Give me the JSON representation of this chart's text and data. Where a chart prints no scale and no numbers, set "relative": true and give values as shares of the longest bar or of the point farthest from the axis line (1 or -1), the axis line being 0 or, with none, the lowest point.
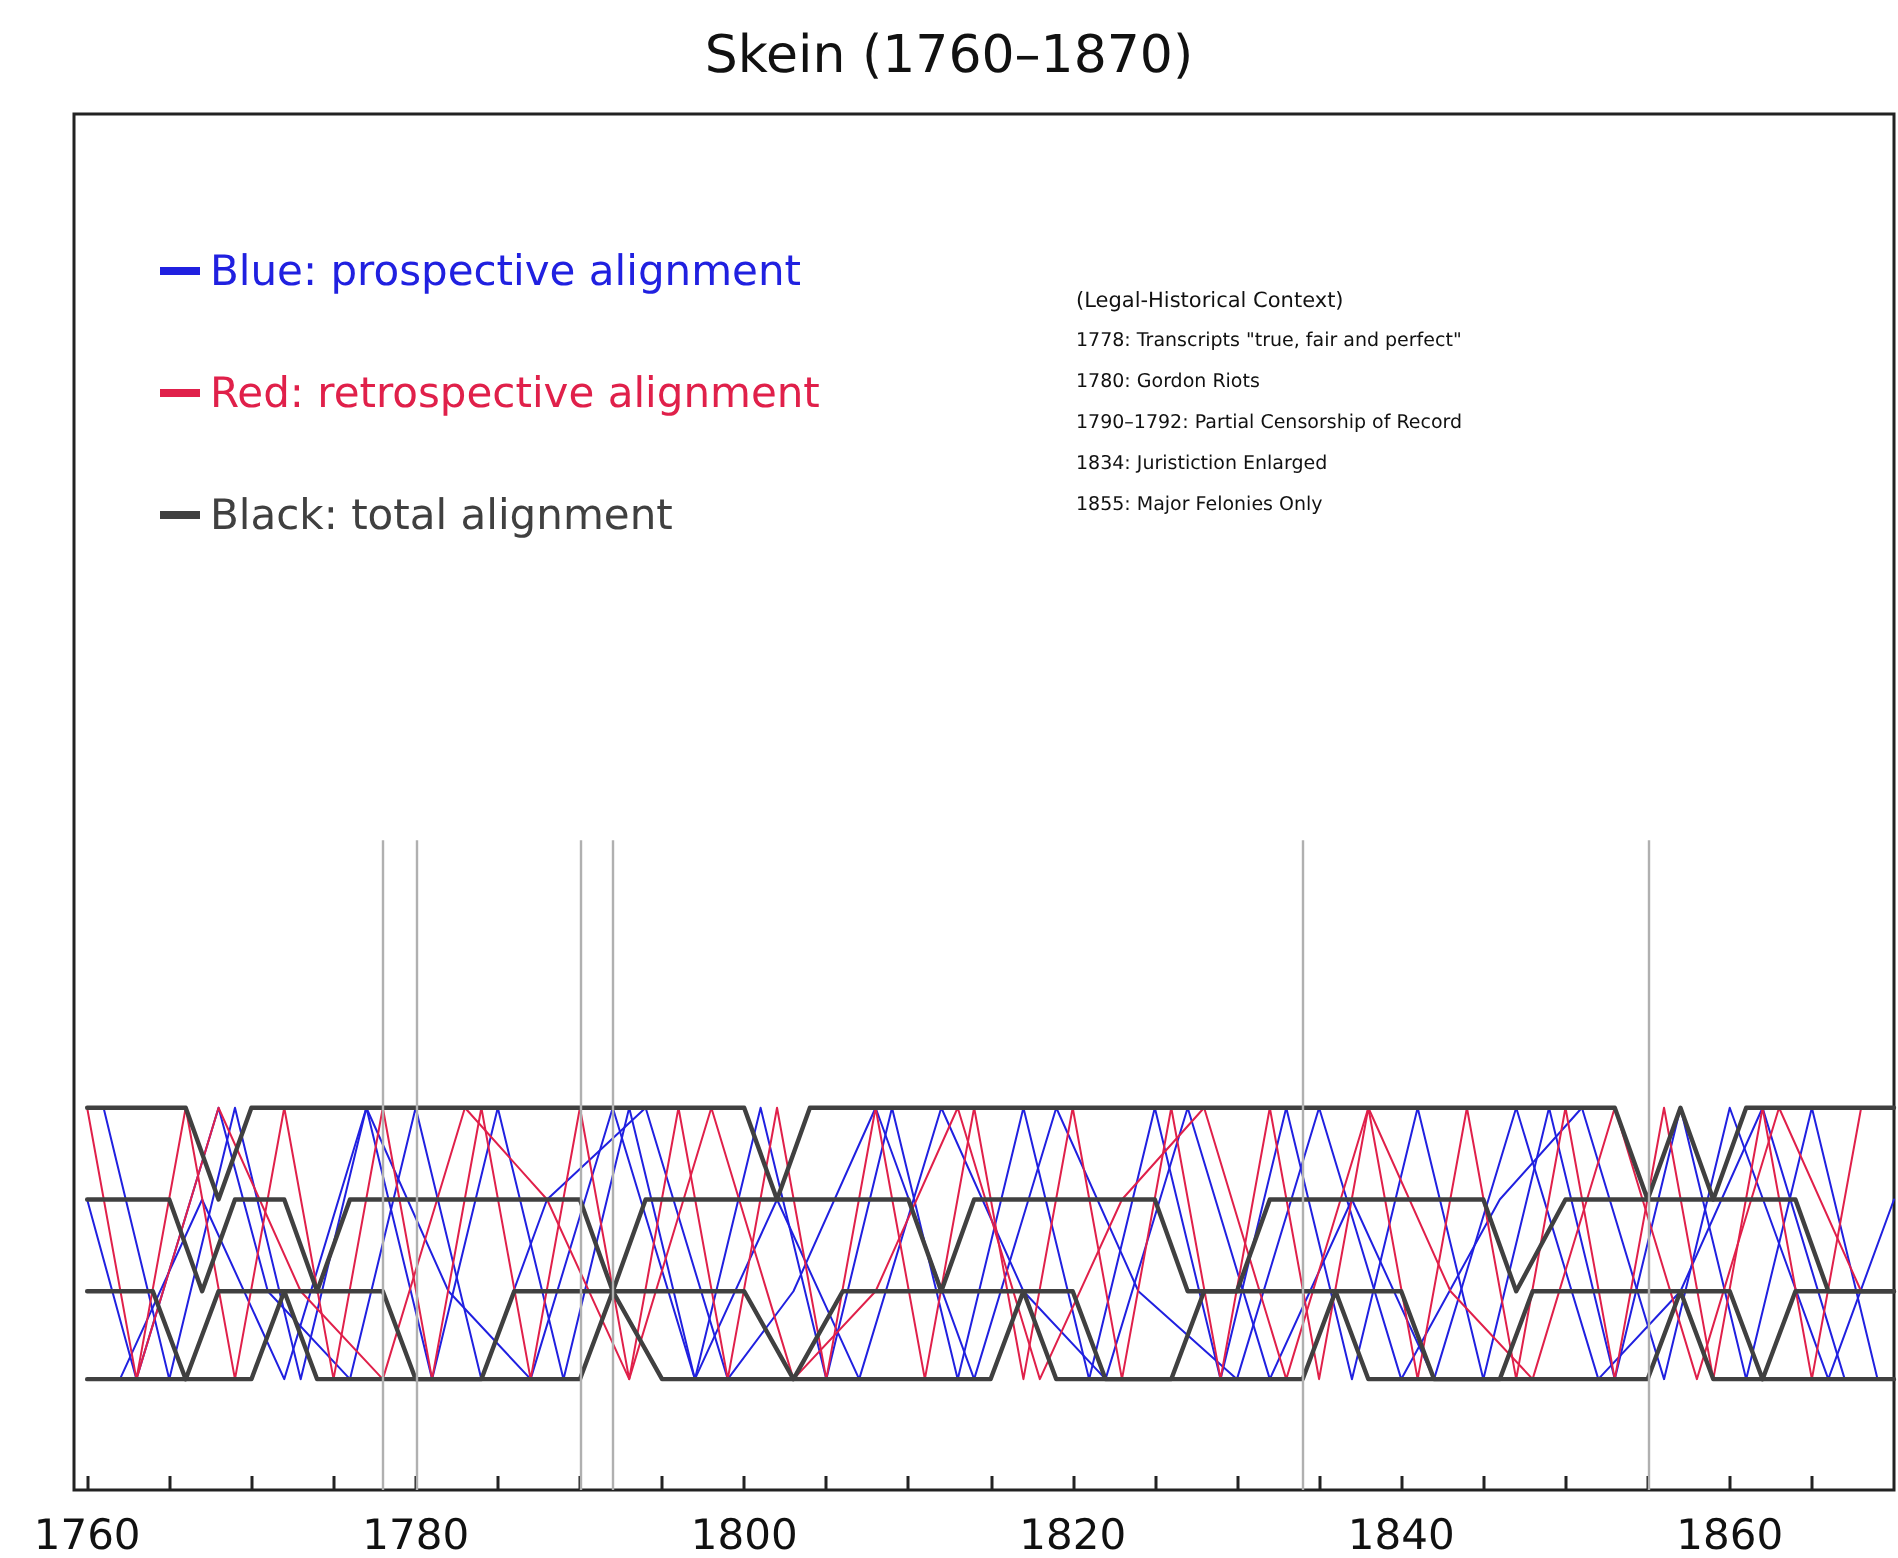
{
  "chart_data": {
    "type": "line",
    "title": "Skein (1760–1870)",
    "relative": true,
    "legend": "top left",
    "grid": false,
    "marker": "none",
    "line_style": "solid",
    "xlim": [
      1759.2,
      1870
    ],
    "xticks": [
      1760,
      {
        "value": 1765,
        "label": null
      },
      {
        "value": 1770,
        "label": null
      },
      {
        "value": 1775,
        "label": null
      },
      1780,
      {
        "value": 1785,
        "label": null
      },
      {
        "value": 1790,
        "label": null
      },
      {
        "value": 1795,
        "label": null
      },
      1800,
      {
        "value": 1805,
        "label": null
      },
      {
        "value": 1810,
        "label": null
      },
      {
        "value": 1815,
        "label": null
      },
      1820,
      {
        "value": 1825,
        "label": null
      },
      {
        "value": 1830,
        "label": null
      },
      {
        "value": 1835,
        "label": null
      },
      1840,
      {
        "value": 1845,
        "label": null
      },
      {
        "value": 1850,
        "label": null
      },
      {
        "value": 1855,
        "label": null
      },
      1860,
      {
        "value": 1865,
        "label": null
      }
    ],
    "annotations": [
      "(Legal-Historical Context)",
      "1778: Transcripts \"true, fair and perfect\"",
      "1780: Gordon Riots",
      "1790–1792: Partial Censorship of Record",
      "1834: Juristiction Enlarged",
      "1855: Major Felonies Only"
    ],
    "ref_lines": [
      {
        "axis": "x",
        "value": 1778,
        "color": "#b0b0b0"
      },
      {
        "axis": "x",
        "value": 1780,
        "color": "#b0b0b0"
      },
      {
        "axis": "x",
        "value": 1790,
        "color": "#b0b0b0"
      },
      {
        "axis": "x",
        "value": 1792,
        "color": "#b0b0b0"
      },
      {
        "axis": "x",
        "value": 1834,
        "color": "#b0b0b0"
      },
      {
        "axis": "x",
        "value": 1855,
        "color": "#b0b0b0"
      }
    ],
    "series": [
      {
        "name": "Blue: prospective alignment",
        "color": "#2020e0",
        "x": [
          1761,
          1765,
          1769,
          1773,
          1777,
          1781,
          1785,
          1789,
          1793,
          1797,
          1801,
          1805,
          1809,
          1813,
          1817,
          1821,
          1825,
          1829,
          1833,
          1837,
          1841,
          1845,
          1849,
          1853,
          1857,
          1861,
          1865,
          1869
        ],
        "values": [
          1,
          0.29,
          1,
          0.29,
          1,
          0.29,
          1,
          0.29,
          1,
          0.29,
          1,
          0.29,
          1,
          0.29,
          1,
          0.29,
          1,
          0.29,
          1,
          0.29,
          1,
          0.29,
          1,
          0.29,
          1,
          0.29,
          1,
          0.29
        ]
      },
      {
        "color": "#2020e0",
        "x": [
          1762,
          1767,
          1772,
          1777,
          1782,
          1787,
          1792,
          1797,
          1802,
          1807,
          1812,
          1817,
          1822,
          1827,
          1832,
          1837,
          1842,
          1847,
          1852,
          1857,
          1862,
          1867
        ],
        "values": [
          0.29,
          0.76,
          0.29,
          1,
          0.52,
          0.29,
          1,
          0.29,
          0.76,
          0.29,
          1,
          0.52,
          0.29,
          1,
          0.29,
          0.76,
          0.29,
          1,
          0.29,
          0.52,
          1,
          0.29
        ]
      },
      {
        "color": "#2020e0",
        "x": [
          1760,
          1763,
          1768,
          1771,
          1776,
          1780,
          1784,
          1788,
          1794,
          1799,
          1803,
          1808,
          1814,
          1819,
          1824,
          1830,
          1835,
          1840,
          1846,
          1851,
          1856,
          1860,
          1866,
          1870
        ],
        "values": [
          0.76,
          0.29,
          1,
          0.52,
          0.29,
          1,
          0.29,
          0.76,
          1,
          0.29,
          0.52,
          1,
          0.29,
          1,
          0.52,
          0.29,
          1,
          0.29,
          0.76,
          1,
          0.29,
          1,
          0.29,
          0.76
        ]
      },
      {
        "name": "Red: retrospective alignment",
        "color": "#e0204a",
        "x": [
          1760,
          1763,
          1766,
          1769,
          1772,
          1775,
          1778,
          1781,
          1784,
          1787,
          1790,
          1793,
          1796,
          1799,
          1802,
          1805,
          1808,
          1811,
          1814,
          1817,
          1820,
          1823,
          1826,
          1829,
          1832,
          1835,
          1838,
          1841,
          1844,
          1847,
          1850,
          1853,
          1856,
          1859,
          1862,
          1865,
          1868
        ],
        "values": [
          1,
          0.29,
          1,
          0.29,
          1,
          0.29,
          1,
          0.29,
          1,
          0.29,
          1,
          0.29,
          1,
          0.29,
          1,
          0.29,
          1,
          0.29,
          1,
          0.29,
          1,
          0.29,
          1,
          0.29,
          1,
          0.29,
          1,
          0.29,
          1,
          0.29,
          1,
          0.29,
          1,
          0.29,
          1,
          0.29,
          1
        ]
      },
      {
        "color": "#e0204a",
        "x": [
          1763,
          1768,
          1773,
          1778,
          1783,
          1788,
          1793,
          1798,
          1803,
          1808,
          1813,
          1818,
          1823,
          1828,
          1833,
          1838,
          1843,
          1848,
          1853,
          1858,
          1863,
          1868
        ],
        "values": [
          0.29,
          1,
          0.52,
          0.29,
          1,
          0.76,
          0.29,
          1,
          0.29,
          0.52,
          1,
          0.29,
          0.76,
          1,
          0.29,
          1,
          0.52,
          0.29,
          1,
          0.29,
          1,
          0.52
        ]
      },
      {
        "name": "Black: total alignment",
        "color": "#404040",
        "x": [
          1760,
          1766,
          1768,
          1770,
          1800,
          1802,
          1804,
          1853,
          1855,
          1857,
          1859,
          1861,
          1870
        ],
        "values": [
          1,
          1,
          0.76,
          1,
          1,
          0.76,
          1,
          1,
          0.76,
          1,
          0.76,
          1,
          1
        ]
      },
      {
        "color": "#404040",
        "x": [
          1760,
          1765,
          1767,
          1769,
          1772,
          1774,
          1776,
          1790,
          1792,
          1794,
          1810,
          1812,
          1814,
          1825,
          1827,
          1830,
          1832,
          1845,
          1847,
          1850,
          1864,
          1866,
          1870
        ],
        "values": [
          0.76,
          0.76,
          0.52,
          0.76,
          0.76,
          0.52,
          0.76,
          0.76,
          0.52,
          0.76,
          0.76,
          0.52,
          0.76,
          0.76,
          0.52,
          0.52,
          0.76,
          0.76,
          0.52,
          0.76,
          0.76,
          0.52,
          0.52
        ]
      },
      {
        "color": "#404040",
        "x": [
          1760,
          1764,
          1766,
          1768,
          1778,
          1780,
          1784,
          1786,
          1800,
          1803,
          1806,
          1820,
          1822,
          1826,
          1828,
          1840,
          1842,
          1846,
          1848,
          1860,
          1862,
          1864,
          1870
        ],
        "values": [
          0.52,
          0.52,
          0.29,
          0.52,
          0.52,
          0.29,
          0.29,
          0.52,
          0.52,
          0.29,
          0.52,
          0.52,
          0.29,
          0.29,
          0.52,
          0.52,
          0.29,
          0.29,
          0.52,
          0.52,
          0.29,
          0.52,
          0.52
        ]
      },
      {
        "color": "#404040",
        "x": [
          1760,
          1770,
          1772,
          1774,
          1790,
          1792,
          1795,
          1815,
          1817,
          1819,
          1834,
          1836,
          1838,
          1855,
          1857,
          1859,
          1870
        ],
        "values": [
          0.29,
          0.29,
          0.52,
          0.29,
          0.29,
          0.52,
          0.29,
          0.29,
          0.52,
          0.29,
          0.29,
          0.52,
          0.29,
          0.29,
          0.52,
          0.29,
          0.29
        ]
      }
    ]
  }
}
